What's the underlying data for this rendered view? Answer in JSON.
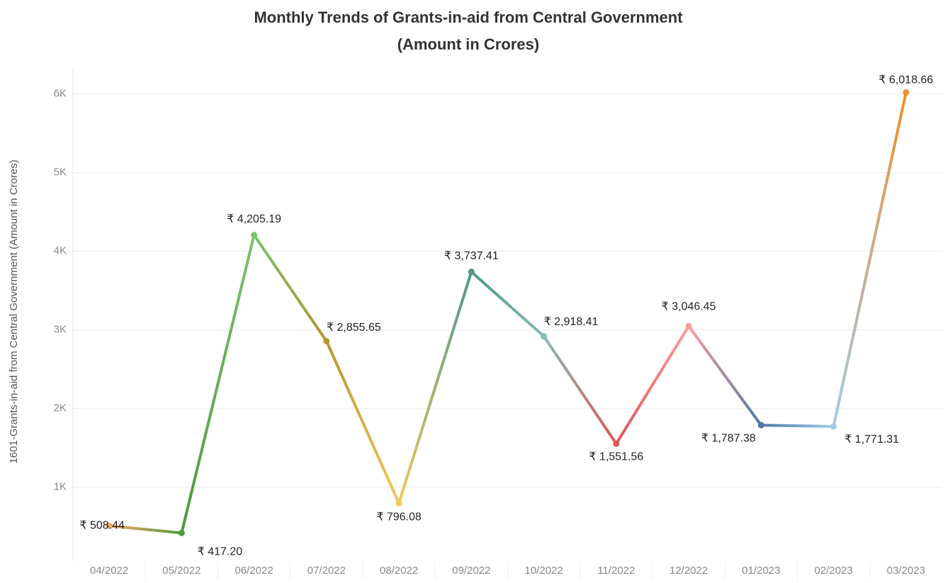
{
  "chart_data": {
    "type": "line",
    "title": "Monthly Trends of Grants-in-aid from Central Government",
    "subtitle": "(Amount in Crores)",
    "y_label": "1601-Grants-in-aid from Central Government (Amount in Crores)",
    "categories": [
      "04/2022",
      "05/2022",
      "06/2022",
      "07/2022",
      "08/2022",
      "09/2022",
      "10/2022",
      "11/2022",
      "12/2022",
      "01/2023",
      "02/2023",
      "03/2023"
    ],
    "values": [
      508.44,
      417.2,
      4205.19,
      2855.65,
      796.08,
      3737.41,
      2918.41,
      1551.56,
      3046.45,
      1787.38,
      1771.31,
      6018.66
    ],
    "value_labels": [
      "₹ 508.44",
      "₹ 417.20",
      "₹ 4,205.19",
      "₹ 2,855.65",
      "₹ 796.08",
      "₹ 3,737.41",
      "₹ 2,918.41",
      "₹ 1,551.56",
      "₹ 3,046.45",
      "₹ 1,787.38",
      "₹ 1,771.31",
      "₹ 6,018.66"
    ],
    "colors": [
      "#f5a867",
      "#4e9a3e",
      "#7cc36a",
      "#b5962e",
      "#f0c95a",
      "#4a9a8a",
      "#86bcb6",
      "#e15759",
      "#ff9d9a",
      "#4e79a7",
      "#a0cbe8",
      "#f28e2b"
    ],
    "ylim": [
      60,
      6320
    ],
    "yticks": [
      {
        "value": 1000,
        "label": "1K"
      },
      {
        "value": 2000,
        "label": "2K"
      },
      {
        "value": 3000,
        "label": "3K"
      },
      {
        "value": 4000,
        "label": "4K"
      },
      {
        "value": 5000,
        "label": "5K"
      },
      {
        "value": 6000,
        "label": "6K"
      }
    ],
    "grid": true
  }
}
